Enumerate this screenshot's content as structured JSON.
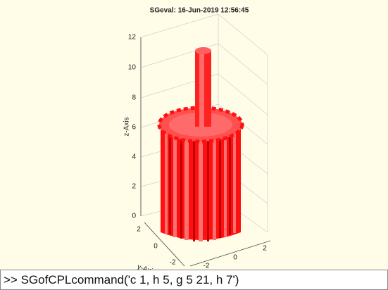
{
  "figure": {
    "title": "SGeval: 16-Jun-2019 12:56:45",
    "z_axis": {
      "label": "z-Axis",
      "ticks": [
        "12",
        "10",
        "8",
        "6",
        "4",
        "2",
        "0"
      ]
    },
    "y_axis": {
      "label": "y-Axis",
      "ticks": [
        "2",
        "0",
        "-2"
      ]
    },
    "x_axis": {
      "ticks": [
        "-2",
        "0",
        "2"
      ]
    }
  },
  "command_window": {
    "command": ">> SGofCPLcommand('c 1, h 5, g 5 21, h 7')"
  }
}
